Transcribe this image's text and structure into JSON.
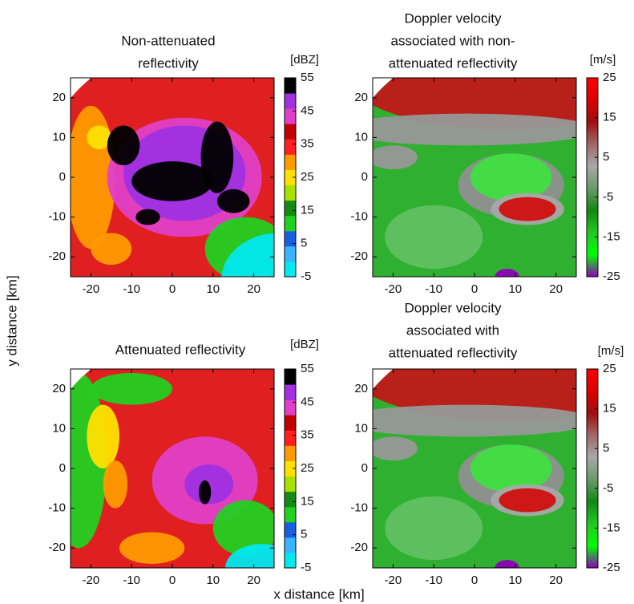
{
  "x_label": "x distance [km]",
  "y_label": "y distance [km]",
  "chart_data": [
    {
      "type": "heatmap",
      "title": [
        "Non-attenuated",
        "reflectivity"
      ],
      "xlim": [
        -25,
        25
      ],
      "ylim": [
        -25,
        25
      ],
      "xticks": [
        -20,
        -10,
        0,
        10,
        20
      ],
      "yticks": [
        -20,
        -10,
        0,
        10,
        20
      ],
      "colorbar": {
        "label": "[dBZ]",
        "lim": [
          -5,
          55
        ],
        "ticks": [
          -5,
          5,
          15,
          25,
          35,
          45,
          55
        ],
        "colors": [
          "#00e8f0",
          "#3ab4ff",
          "#1a5ee0",
          "#22d022",
          "#138a13",
          "#a8e000",
          "#ffe000",
          "#ff9a00",
          "#ff2020",
          "#c00000",
          "#e040c8",
          "#a030e0",
          "#000000"
        ]
      }
    },
    {
      "type": "heatmap",
      "title": [
        "Doppler velocity",
        "associated with non-",
        "attenuated reflectivity"
      ],
      "xlim": [
        -25,
        25
      ],
      "ylim": [
        -25,
        25
      ],
      "xticks": [
        -20,
        -10,
        0,
        10,
        20
      ],
      "yticks": [
        -20,
        -10,
        0,
        10,
        20
      ],
      "colorbar": {
        "label": "[m/s]",
        "lim": [
          -25,
          25
        ],
        "ticks": [
          -25,
          -15,
          -5,
          5,
          15,
          25
        ],
        "colors": [
          "#8e00b8",
          "#00ff00",
          "#22c822",
          "#138813",
          "#6a9a6a",
          "#a8a8a8",
          "#a06868",
          "#a00f0f",
          "#dd0000",
          "#ff0000"
        ]
      }
    },
    {
      "type": "heatmap",
      "title": [
        "Attenuated reflectivity"
      ],
      "xlim": [
        -25,
        25
      ],
      "ylim": [
        -25,
        25
      ],
      "xticks": [
        -20,
        -10,
        0,
        10,
        20
      ],
      "yticks": [
        -20,
        -10,
        0,
        10,
        20
      ],
      "colorbar": {
        "label": "[dBZ]",
        "lim": [
          -5,
          55
        ],
        "ticks": [
          -5,
          5,
          15,
          25,
          35,
          45,
          55
        ],
        "colors": [
          "#00e8f0",
          "#3ab4ff",
          "#1a5ee0",
          "#22d022",
          "#138a13",
          "#a8e000",
          "#ffe000",
          "#ff9a00",
          "#ff2020",
          "#c00000",
          "#e040c8",
          "#a030e0",
          "#000000"
        ]
      }
    },
    {
      "type": "heatmap",
      "title": [
        "Doppler velocity",
        "associated with",
        "attenuated reflectivity"
      ],
      "xlim": [
        -25,
        25
      ],
      "ylim": [
        -25,
        25
      ],
      "xticks": [
        -20,
        -10,
        0,
        10,
        20
      ],
      "yticks": [
        -20,
        -10,
        0,
        10,
        20
      ],
      "colorbar": {
        "label": "[m/s]",
        "lim": [
          -25,
          25
        ],
        "ticks": [
          -25,
          -15,
          -5,
          5,
          15,
          25
        ],
        "colors": [
          "#8e00b8",
          "#00ff00",
          "#22c822",
          "#138813",
          "#6a9a6a",
          "#a8a8a8",
          "#a06868",
          "#a00f0f",
          "#dd0000",
          "#ff0000"
        ]
      }
    }
  ]
}
